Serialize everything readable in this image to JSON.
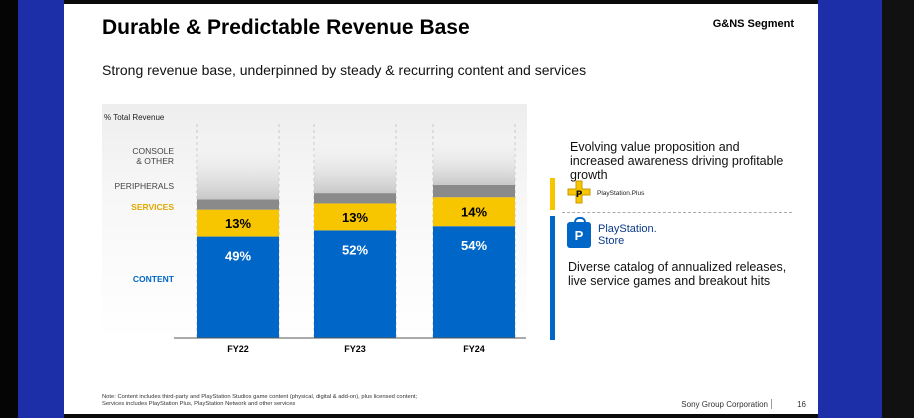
{
  "slide": {
    "title": "Durable & Predictable Revenue Base",
    "segment": "G&NS Segment",
    "subtitle": "Strong revenue base, underpinned by steady & recurring content and services",
    "note_line1": "Note: Content includes third-party and PlayStation Studios game content (physical, digital & add-on), plus licensed content;",
    "note_line2": "Services includes PlayStation Plus, PlayStation Network and other services",
    "footer_company": "Sony Group Corporation",
    "page_number": "16"
  },
  "chart_data": {
    "type": "bar",
    "stacked": true,
    "ylabel": "% Total Revenue",
    "categories": [
      "FY22",
      "FY23",
      "FY24"
    ],
    "series": [
      {
        "name": "CONTENT",
        "values": [
          49,
          52,
          54
        ],
        "color": "#0067c8",
        "label_color": "#0067c8"
      },
      {
        "name": "SERVICES",
        "values": [
          13,
          13,
          14
        ],
        "color": "#f7c600",
        "label_color": "#e0a800"
      },
      {
        "name": "PERIPHERALS",
        "values": [
          5,
          5,
          6
        ],
        "color": "#8a8a8a",
        "label_color": "#444444"
      },
      {
        "name": "CONSOLE & OTHER",
        "values": [
          33,
          30,
          26
        ],
        "color": "#d8d8d8",
        "label_color": "#444444"
      }
    ],
    "data_labels": [
      {
        "series": "CONTENT",
        "labels": [
          "49%",
          "52%",
          "54%"
        ]
      },
      {
        "series": "SERVICES",
        "labels": [
          "13%",
          "13%",
          "14%"
        ]
      }
    ],
    "legend_placement": "left"
  },
  "right_panel": {
    "top_text": "Evolving value proposition and increased awareness driving profitable growth",
    "psplus_label": "PlayStation.Plus",
    "psstore_label_line1": "PlayStation.",
    "psstore_label_line2": "Store",
    "bottom_text": "Diverse catalog of annualized releases, live service games and breakout hits",
    "colors": {
      "services": "#f7c600",
      "content": "#0067c8"
    },
    "icons": [
      "playstation-plus-logo",
      "playstation-store-bag-icon"
    ]
  }
}
